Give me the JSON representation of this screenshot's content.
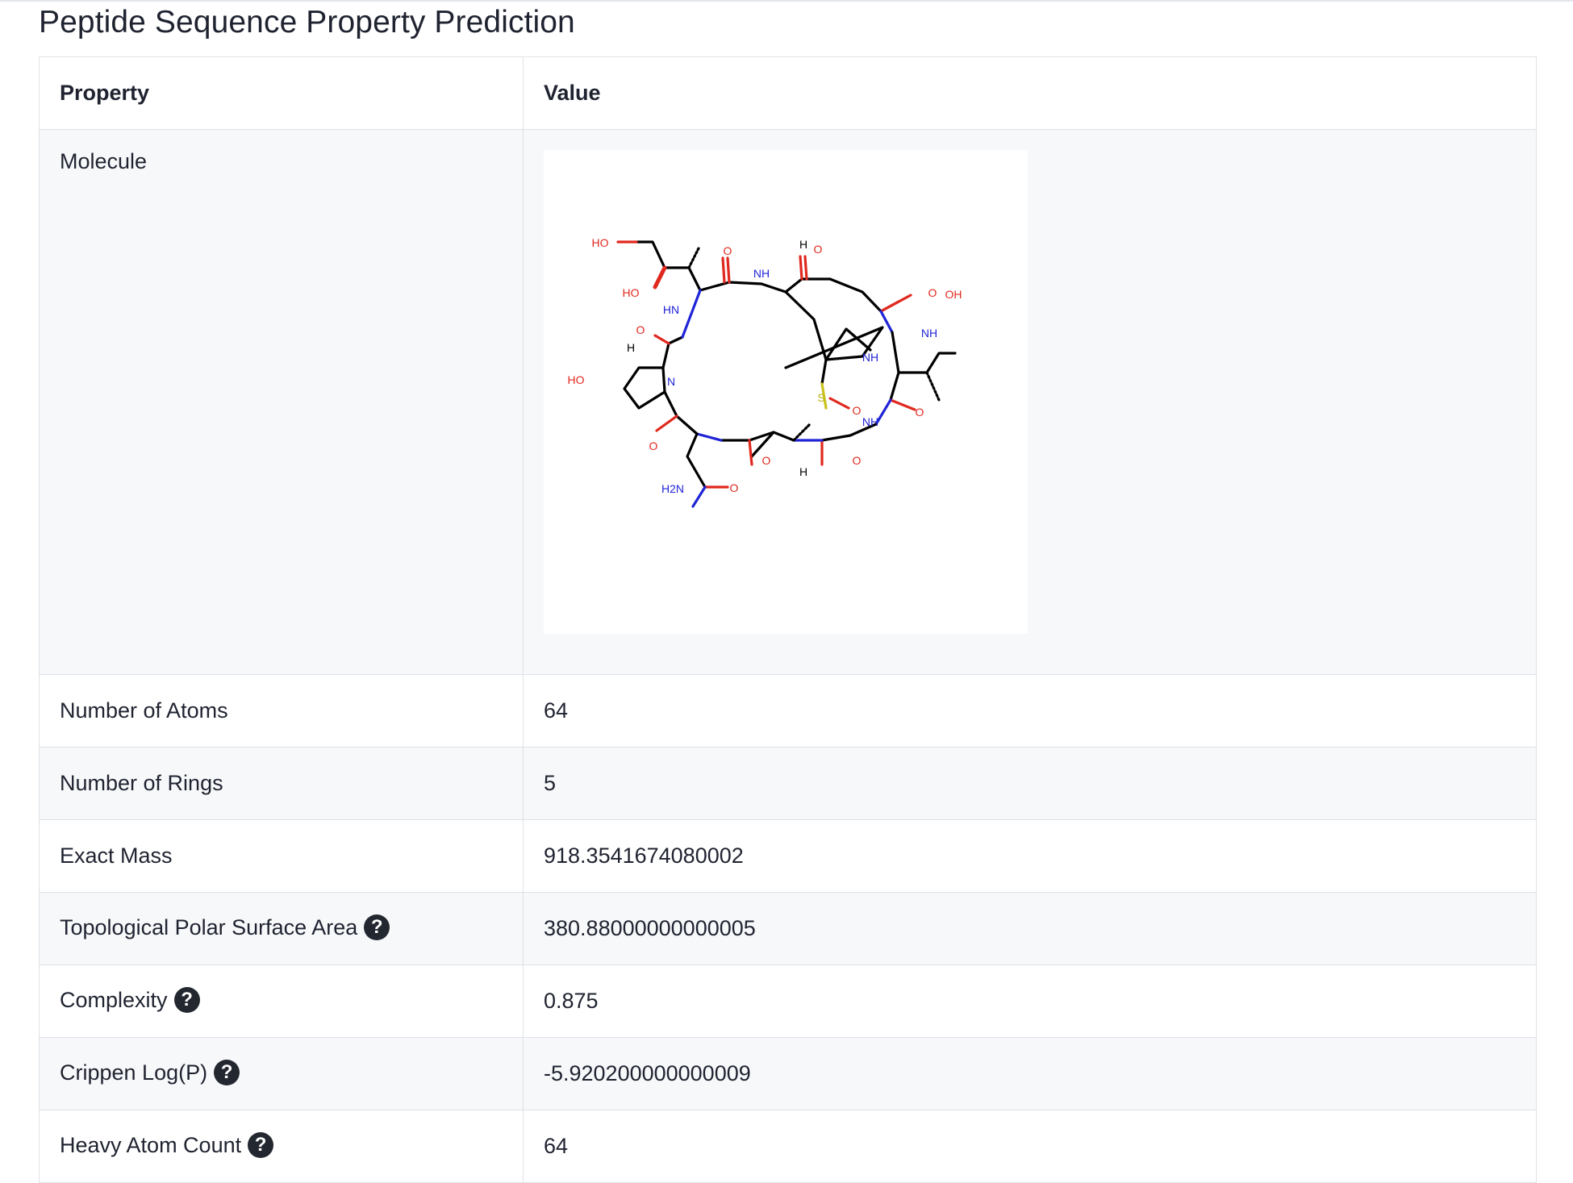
{
  "page": {
    "title": "Peptide Sequence Property Prediction"
  },
  "table": {
    "header_property": "Property",
    "header_value": "Value",
    "molecule_label": "Molecule",
    "rows": [
      {
        "label": "Number of Atoms",
        "value": "64",
        "help": false
      },
      {
        "label": "Number of Rings",
        "value": "5",
        "help": false
      },
      {
        "label": "Exact Mass",
        "value": "918.3541674080002",
        "help": false
      },
      {
        "label": "Topological Polar Surface Area",
        "value": "380.88000000000005",
        "help": true
      },
      {
        "label": "Complexity",
        "value": "0.875",
        "help": true
      },
      {
        "label": "Crippen Log(P)",
        "value": "-5.920200000000009",
        "help": true
      },
      {
        "label": "Heavy Atom Count",
        "value": "64",
        "help": true
      }
    ],
    "help_glyph": "?"
  },
  "molecule_labels": {
    "ho_top": "HO",
    "ho_mid": "HO",
    "ho_left": "HO",
    "oh_right": "OH",
    "nh_amide": "HN",
    "h2n": "H2N",
    "s": "S",
    "n_ring": "N",
    "o": "O",
    "nh": "NH",
    "h": "H"
  },
  "colors": {
    "oxygen": "#e0281e",
    "nitrogen": "#1f24d6",
    "sulfur": "#c9c21c",
    "bond": "#000000",
    "help_bg": "#23272f"
  }
}
